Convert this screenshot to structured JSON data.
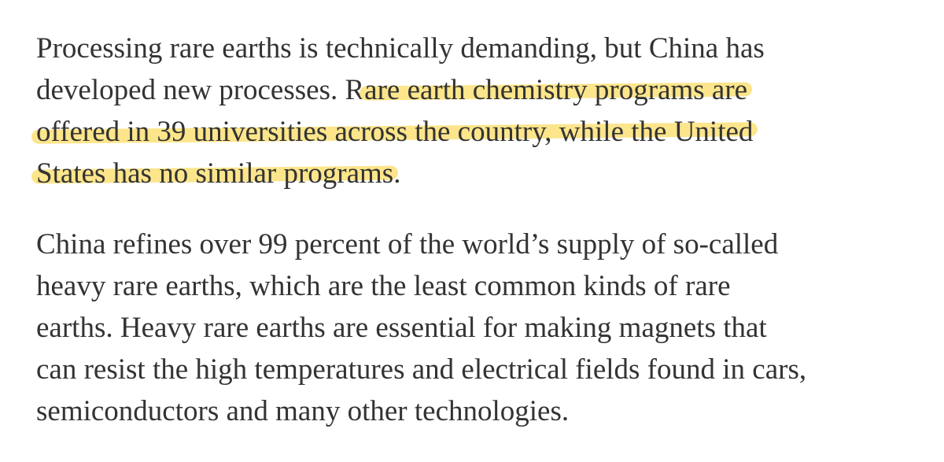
{
  "article": {
    "paragraph1": {
      "line1": "Processing rare earths is technically demanding, but China has",
      "line2_pre": "developed new processes. R",
      "line2_hl": "are earth chemistry programs are",
      "line3_hl": "offered in 39 universities across the country, while the United",
      "line4_hl": "States has no similar programs",
      "line4_post": "."
    },
    "paragraph2": {
      "lines": [
        "China refines over 99 percent of the world’s supply of so-called",
        "heavy rare earths, which are the least common kinds of rare",
        "earths. Heavy rare earths are essential for making magnets that",
        "can resist the high temperatures and electrical fields found in cars,",
        "semiconductors and many other technologies."
      ]
    },
    "highlight_color": "#fce58b",
    "text_color": "#333333"
  }
}
